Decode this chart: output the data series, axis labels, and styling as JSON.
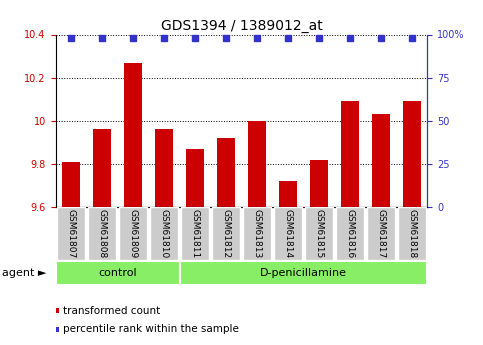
{
  "title": "GDS1394 / 1389012_at",
  "samples": [
    "GSM61807",
    "GSM61808",
    "GSM61809",
    "GSM61810",
    "GSM61811",
    "GSM61812",
    "GSM61813",
    "GSM61814",
    "GSM61815",
    "GSM61816",
    "GSM61817",
    "GSM61818"
  ],
  "bar_values": [
    9.81,
    9.96,
    10.27,
    9.96,
    9.87,
    9.92,
    10.0,
    9.72,
    9.82,
    10.09,
    10.03,
    10.09
  ],
  "bar_color": "#cc0000",
  "dot_color": "#3333cc",
  "ylim_left": [
    9.6,
    10.4
  ],
  "ylim_right": [
    0,
    100
  ],
  "yticks_left": [
    9.6,
    9.8,
    10.0,
    10.2,
    10.4
  ],
  "ytick_labels_left": [
    "9.6",
    "9.8",
    "10",
    "10.2",
    "10.4"
  ],
  "yticks_right": [
    0,
    25,
    50,
    75,
    100
  ],
  "ytick_labels_right": [
    "0",
    "25",
    "50",
    "75",
    "100%"
  ],
  "groups": [
    {
      "label": "control",
      "start": 0,
      "end": 4
    },
    {
      "label": "D-penicillamine",
      "start": 4,
      "end": 12
    }
  ],
  "group_color": "#88ee66",
  "tick_bg_color": "#cccccc",
  "agent_label": "agent",
  "legend_items": [
    {
      "label": "transformed count",
      "color": "#cc0000"
    },
    {
      "label": "percentile rank within the sample",
      "color": "#3333cc"
    }
  ],
  "grid_color": "black",
  "bar_bottom": 9.6,
  "dot_percentile": 98.0,
  "title_fontsize": 10,
  "tick_fontsize": 7,
  "label_fontsize": 8,
  "legend_fontsize": 8
}
